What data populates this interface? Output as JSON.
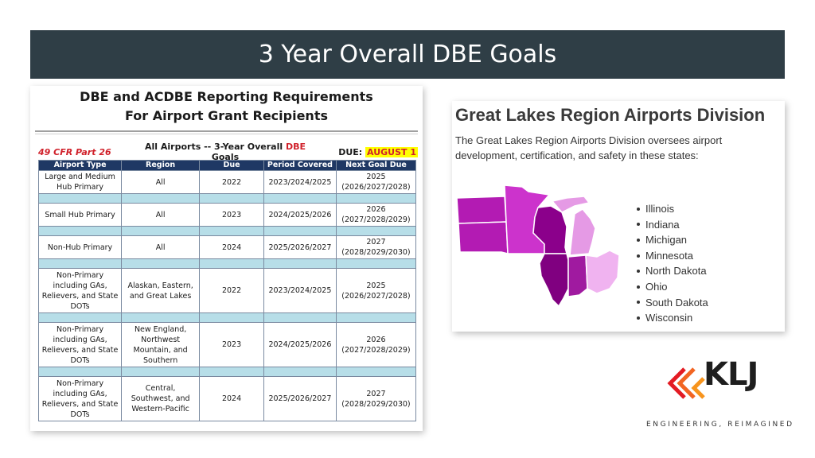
{
  "slide": {
    "title": "3 Year Overall DBE Goals"
  },
  "left_image": {
    "heading_line1": "DBE and ACDBE Reporting Requirements",
    "heading_line2": "For Airport Grant Recipients",
    "cfr": "49 CFR Part 26",
    "all_airports_prefix": "All Airports -- 3-Year Overall ",
    "all_airports_dbe": "DBE",
    "all_airports_suffix": " Goals",
    "due_label": "DUE: ",
    "due_value": "AUGUST 1",
    "columns": [
      "Airport Type",
      "Region",
      "Due",
      "Period Covered",
      "Next Goal Due"
    ],
    "rows": [
      {
        "type": "Large and Medium Hub Primary",
        "region": "All",
        "due": "2022",
        "period": "2023/2024/2025",
        "next_year": "2025",
        "next_period": "(2026/2027/2028)"
      },
      {
        "type": "Small Hub Primary",
        "region": "All",
        "due": "2023",
        "period": "2024/2025/2026",
        "next_year": "2026",
        "next_period": "(2027/2028/2029)"
      },
      {
        "type": "Non-Hub Primary",
        "region": "All",
        "due": "2024",
        "period": "2025/2026/2027",
        "next_year": "2027",
        "next_period": "(2028/2029/2030)"
      },
      {
        "type": "Non-Primary including GAs, Relievers, and State DOTs",
        "region": "Alaskan, Eastern, and Great Lakes",
        "due": "2022",
        "period": "2023/2024/2025",
        "next_year": "2025",
        "next_period": "(2026/2027/2028)"
      },
      {
        "type": "Non-Primary including GAs, Relievers, and State DOTs",
        "region": "New England, Northwest Mountain, and Southern",
        "due": "2023",
        "period": "2024/2025/2026",
        "next_year": "2026",
        "next_period": "(2027/2028/2029)"
      },
      {
        "type": "Non-Primary including GAs, Relievers, and State DOTs",
        "region": "Central, Southwest, and Western-Pacific",
        "due": "2024",
        "period": "2025/2026/2027",
        "next_year": "2027",
        "next_period": "(2028/2029/2030)"
      }
    ]
  },
  "right_image": {
    "title": "Great Lakes Region Airports Division",
    "description": "The Great Lakes Region Airports Division oversees airport development, certification, and safety in these states:",
    "states": [
      "Illinois",
      "Indiana",
      "Michigan",
      "Minnesota",
      "North Dakota",
      "Ohio",
      "South Dakota",
      "Wisconsin"
    ],
    "colors": {
      "dakotas": "#b31bb3",
      "minnesota": "#cc33cc",
      "wisconsin": "#8b008b",
      "michigan": "#e59ae5",
      "illinois": "#800080",
      "indiana": "#a01aa0",
      "ohio": "#f0b3f0"
    }
  },
  "logo": {
    "name": "KLJ",
    "tagline": "ENGINEERING, REIMAGINED",
    "colors": {
      "orange": "#f26522",
      "red": "#e31b23",
      "dark": "#1e1e1e"
    }
  }
}
